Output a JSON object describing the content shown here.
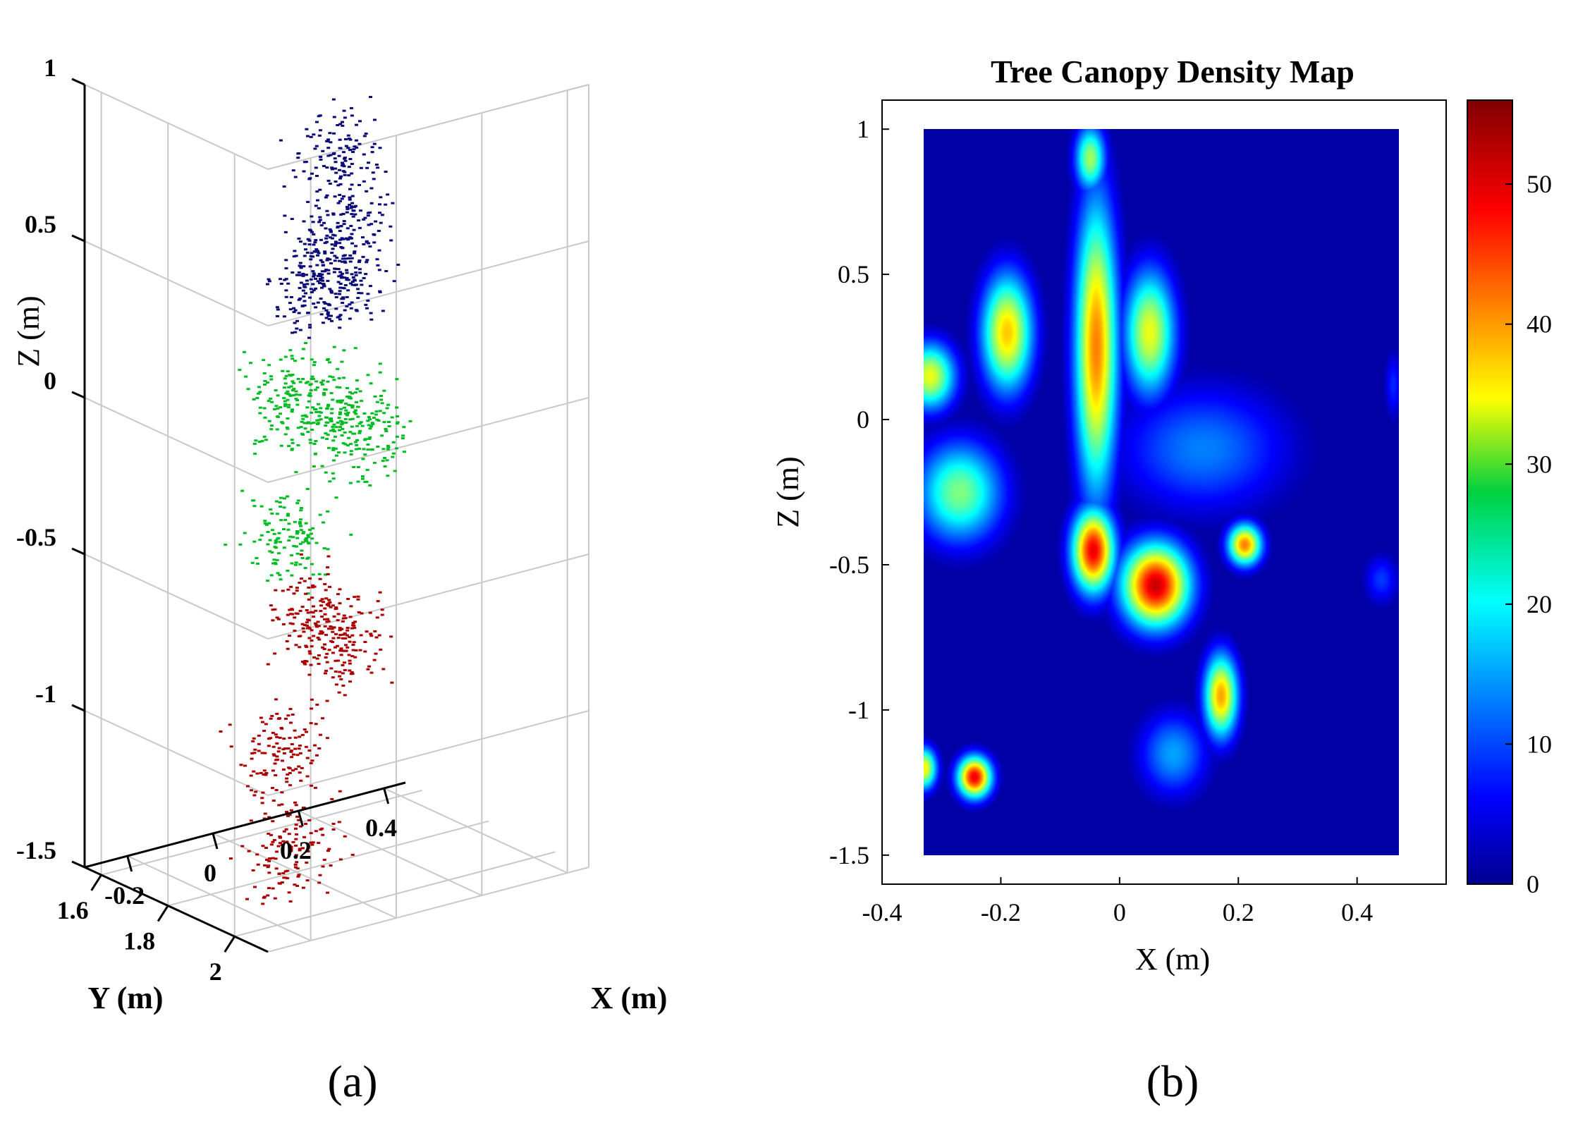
{
  "panel_a": {
    "caption": "(a)",
    "xlabel": "X (m)",
    "ylabel": "Y (m)",
    "zlabel": "Z (m)",
    "x_ticks": [
      "-0.2",
      "0",
      "0.2",
      "0.4"
    ],
    "y_ticks": [
      "2",
      "1.8",
      "1.6"
    ],
    "z_ticks": [
      "1",
      "0.5",
      "0",
      "-0.5",
      "-1",
      "-1.5"
    ],
    "colors": {
      "top": "#0a0a78",
      "middle": "#00bb22",
      "bottom": "#aa0000"
    }
  },
  "panel_b": {
    "caption": "(b)",
    "title": "Tree Canopy Density Map",
    "xlabel": "X (m)",
    "ylabel": "Z (m)",
    "x_ticks": [
      "-0.4",
      "-0.2",
      "0",
      "0.2",
      "0.4"
    ],
    "y_ticks": [
      "1",
      "0.5",
      "0",
      "-0.5",
      "-1",
      "-1.5"
    ],
    "colorbar_ticks": [
      "0",
      "10",
      "20",
      "30",
      "40",
      "50"
    ]
  },
  "chart_data": [
    {
      "type": "scatter",
      "subtype": "3d-point-cloud",
      "xlabel": "X (m)",
      "ylabel": "Y (m)",
      "zlabel": "Z (m)",
      "xlim": [
        -0.3,
        0.45
      ],
      "ylim": [
        1.55,
        2.1
      ],
      "zlim": [
        -1.5,
        1.0
      ],
      "grid": true,
      "series": [
        {
          "z_range": [
            0.2,
            0.95
          ],
          "color": "#0a0a78",
          "clusters": [
            {
              "x": 0.05,
              "y": 1.85,
              "z": 0.8
            },
            {
              "x": 0.1,
              "y": 1.8,
              "z": 0.55
            },
            {
              "x": -0.05,
              "y": 1.9,
              "z": 0.45
            },
            {
              "x": 0.15,
              "y": 1.75,
              "z": 0.3
            }
          ]
        },
        {
          "z_range": [
            -0.55,
            0.25
          ],
          "color": "#00bb22",
          "clusters": [
            {
              "x": -0.1,
              "y": 1.9,
              "z": 0.1
            },
            {
              "x": 0.05,
              "y": 1.85,
              "z": 0.0
            },
            {
              "x": -0.15,
              "y": 1.95,
              "z": -0.3
            },
            {
              "x": 0.15,
              "y": 1.8,
              "z": -0.15
            }
          ]
        },
        {
          "z_range": [
            -1.5,
            -0.4
          ],
          "color": "#aa0000",
          "clusters": [
            {
              "x": 0.0,
              "y": 1.85,
              "z": -0.65
            },
            {
              "x": 0.15,
              "y": 1.75,
              "z": -0.85
            },
            {
              "x": -0.15,
              "y": 1.95,
              "z": -1.0
            },
            {
              "x": -0.1,
              "y": 1.9,
              "z": -1.35
            }
          ]
        }
      ]
    },
    {
      "type": "heatmap",
      "title": "Tree Canopy Density Map",
      "xlabel": "X (m)",
      "ylabel": "Z (m)",
      "xlim": [
        -0.4,
        0.55
      ],
      "ylim": [
        -1.6,
        1.1
      ],
      "data_extent": {
        "x": [
          -0.33,
          0.47
        ],
        "z": [
          -1.5,
          1.0
        ]
      },
      "colorbar": {
        "min": 0,
        "max": 56,
        "ticks": [
          0,
          10,
          20,
          30,
          40,
          50
        ],
        "colormap": "jet"
      },
      "hotspots": [
        {
          "x": -0.04,
          "z": 0.25,
          "value": 42,
          "sx": 0.025,
          "sz": 0.35
        },
        {
          "x": -0.045,
          "z": -0.45,
          "value": 50,
          "sx": 0.025,
          "sz": 0.1
        },
        {
          "x": -0.19,
          "z": 0.3,
          "value": 38,
          "sx": 0.03,
          "sz": 0.14
        },
        {
          "x": 0.06,
          "z": -0.57,
          "value": 52,
          "sx": 0.04,
          "sz": 0.1
        },
        {
          "x": 0.05,
          "z": 0.3,
          "value": 34,
          "sx": 0.03,
          "sz": 0.15
        },
        {
          "x": -0.05,
          "z": 0.9,
          "value": 30,
          "sx": 0.018,
          "sz": 0.08
        },
        {
          "x": -0.32,
          "z": 0.15,
          "value": 34,
          "sx": 0.03,
          "sz": 0.08
        },
        {
          "x": -0.27,
          "z": -0.25,
          "value": 28,
          "sx": 0.05,
          "sz": 0.12
        },
        {
          "x": 0.17,
          "z": -0.95,
          "value": 40,
          "sx": 0.02,
          "sz": 0.1
        },
        {
          "x": 0.21,
          "z": -0.43,
          "value": 42,
          "sx": 0.02,
          "sz": 0.05
        },
        {
          "x": -0.245,
          "z": -1.23,
          "value": 50,
          "sx": 0.02,
          "sz": 0.05
        },
        {
          "x": -0.33,
          "z": -1.2,
          "value": 36,
          "sx": 0.015,
          "sz": 0.05
        },
        {
          "x": 0.14,
          "z": -0.1,
          "value": 14,
          "sx": 0.1,
          "sz": 0.15
        },
        {
          "x": 0.09,
          "z": -1.15,
          "value": 16,
          "sx": 0.04,
          "sz": 0.1
        },
        {
          "x": 0.44,
          "z": -0.55,
          "value": 10,
          "sx": 0.02,
          "sz": 0.06
        },
        {
          "x": 0.46,
          "z": 0.12,
          "value": 9,
          "sx": 0.01,
          "sz": 0.08
        }
      ]
    }
  ]
}
